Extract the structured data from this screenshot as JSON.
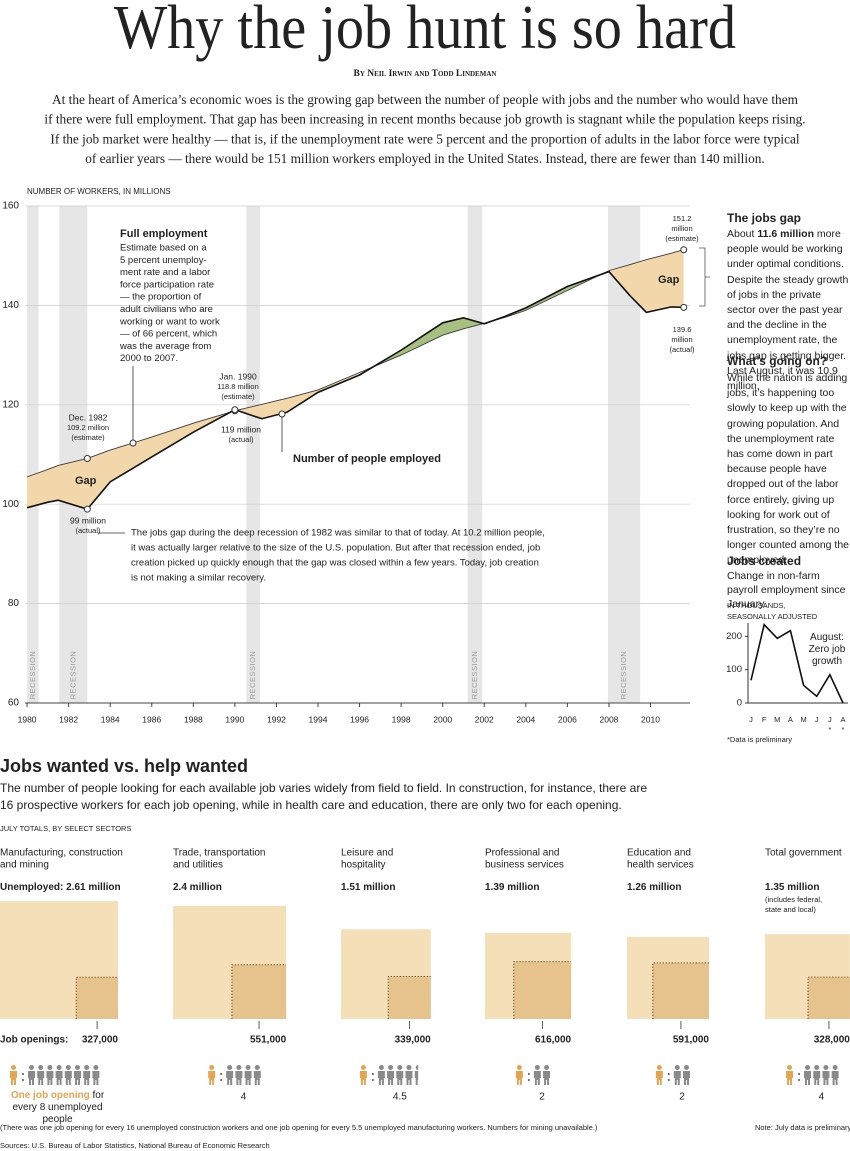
{
  "header": {
    "title": "Why the job hunt is so hard",
    "byline": "By Neil Irwin and Todd Lindeman",
    "intro": [
      "At the heart of America’s economic woes is the growing gap between the number of people with jobs and the number who would have them",
      "if there were full employment. That gap has been increasing in recent months because job growth is stagnant while the population keeps rising.",
      "If the job market were healthy — that is, if the unemployment rate were 5 percent and the proportion of adults in the labor force were typical",
      "of earlier years — there would be 151 million workers employed in the United States. Instead, there are fewer than 140 million."
    ]
  },
  "chart_data": [
    {
      "type": "gap-line",
      "axis_label": "NUMBER OF WORKERS, IN MILLIONS",
      "x": [
        1980,
        1981,
        1981.5,
        1982.9,
        1984,
        1986,
        1988,
        1990,
        1991.3,
        1992.5,
        1994,
        1996,
        1998,
        2000,
        2001,
        2002,
        2003,
        2004,
        2006,
        2008,
        2009,
        2009.8,
        2011,
        2011.6
      ],
      "series": [
        {
          "name": "Full employment",
          "color": "#3a3a3a",
          "values": [
            105.5,
            107,
            107.8,
            109.2,
            110.9,
            113.5,
            116.3,
            118.8,
            120.1,
            121.3,
            123,
            126.5,
            130,
            134,
            135.3,
            136.4,
            137.6,
            139,
            143,
            147,
            148.2,
            149.2,
            150.5,
            151.2
          ]
        },
        {
          "name": "Number of people employed",
          "color": "#111111",
          "values": [
            99.3,
            100.4,
            100.8,
            99,
            104.5,
            109.5,
            114.5,
            119,
            117.2,
            118.5,
            122.5,
            126,
            131,
            136.5,
            137.5,
            136.3,
            137.8,
            139.5,
            143.8,
            146.8,
            142,
            138.6,
            139.7,
            139.6
          ]
        }
      ],
      "gap_color": "#f2d7ab",
      "surplus_color": "#a7bf80",
      "xlim": [
        1979.9,
        2011.9
      ],
      "xticks": [
        1980,
        1982,
        1984,
        1986,
        1988,
        1990,
        1992,
        1994,
        1996,
        1998,
        2000,
        2002,
        2004,
        2006,
        2008,
        2010
      ],
      "ylim": [
        60,
        160
      ],
      "yticks": [
        60,
        80,
        100,
        120,
        140,
        160
      ],
      "grid": true,
      "recessions": [
        [
          1980,
          1980.55
        ],
        [
          1981.55,
          1982.9
        ],
        [
          1990.55,
          1991.2
        ],
        [
          2001.2,
          2001.9
        ],
        [
          2007.95,
          2009.5
        ]
      ],
      "recession_label": "RECESSION",
      "highlights": [
        {
          "x": 1982.9,
          "y": 109.2,
          "lines": [
            "Dec. 1982",
            "109.2 million",
            "(estimate)"
          ]
        },
        {
          "x": 1982.9,
          "y": 99,
          "lines": [
            "99 million",
            "(actual)"
          ]
        },
        {
          "x": 1990,
          "y": 118.8,
          "lines": [
            "Jan. 1990",
            "118.8 million",
            "(estimate)"
          ]
        },
        {
          "x": 1990,
          "y": 119,
          "lines": [
            "119 million",
            "(actual)"
          ]
        },
        {
          "x": 2011.6,
          "y": 151.2,
          "lines": [
            "151.2",
            "million",
            "(estimate)"
          ]
        },
        {
          "x": 2011.6,
          "y": 139.6,
          "lines": [
            "139.6",
            "million",
            "(actual)"
          ]
        }
      ],
      "notes": {
        "full_employment": [
          "Estimate based on a",
          "5 percent unemploy-",
          "ment rate and a labor",
          "force participation rate",
          "— the proportion of",
          "adult civilians who are",
          "working or want to work",
          "— of 66 percent, which",
          "was the average from",
          "2000 to 2007."
        ],
        "gap": "Gap",
        "recession_1982": [
          "The jobs gap during the deep recession of 1982 was similar to that of today. At 10.2 million people,",
          "it was actually larger relative to the size of the U.S. population. But after that recession ended, job",
          "creation picked up quickly enough that the gap was closed within a few years. Today, job creation",
          "is not making a similar recovery."
        ]
      }
    },
    {
      "type": "line",
      "title": "Jobs created",
      "subtitle": "Change in non-farm payroll employment since January.",
      "unit": "IN THOUSANDS, SEASONALLY ADJUSTED",
      "categories": [
        "J",
        "F",
        "M",
        "A",
        "M",
        "J",
        "J",
        "A"
      ],
      "category_notes": [
        null,
        null,
        null,
        null,
        null,
        null,
        "*",
        "*"
      ],
      "values": [
        68,
        235,
        194,
        217,
        53,
        20,
        85,
        0
      ],
      "color": "#111111",
      "ylim": [
        0,
        240
      ],
      "yticks": [
        0,
        100,
        200
      ],
      "annotation": "August: Zero job growth",
      "footnote": "*Data is preliminary"
    },
    {
      "type": "proportional-squares",
      "title": "Jobs wanted vs. help wanted",
      "text": [
        "The number of people looking for each available job varies widely from field to field. In construction, for instance, there are",
        "16 prospective workers for each job opening, while in health care and education, there are only two for each opening."
      ],
      "subtitle": "JULY TOTALS, BY SELECT SECTORS",
      "categories": [
        [
          "Manufacturing, construction",
          "and mining"
        ],
        [
          "Trade, transportation",
          "and utilities"
        ],
        [
          "Leisure and",
          "hospitality"
        ],
        [
          "Professional and",
          "business services"
        ],
        [
          "Education and",
          "health services"
        ],
        [
          "Total government"
        ]
      ],
      "category_notes": [
        null,
        null,
        null,
        null,
        null,
        "(includes federal, state and local)"
      ],
      "series": [
        {
          "name": "Unemployed:",
          "color": "#f4dfb9",
          "values": [
            2610000,
            2400000,
            1510000,
            1390000,
            1260000,
            1350000
          ],
          "value_labels": [
            "2.61 million",
            "2.4 million",
            "1.51 million",
            "1.39 million",
            "1.26 million",
            "1.35 million"
          ]
        },
        {
          "name": "Job openings:",
          "color": "#e6c28c",
          "values": [
            327000,
            551000,
            339000,
            616000,
            591000,
            328000
          ],
          "value_labels": [
            "327,000",
            "551,000",
            "339,000",
            "616,000",
            "591,000",
            "328,000"
          ]
        }
      ],
      "ratios": {
        "values": [
          8,
          4,
          4.5,
          2,
          2,
          4
        ],
        "colors": {
          "opening": "#e3a552",
          "unemployed": "#8a8a8a"
        }
      },
      "ratio_legend": {
        "highlight": "One job opening",
        "text": "for every 8 unemployed people"
      }
    }
  ],
  "sidebar": {
    "gap": {
      "title": "The jobs gap",
      "text": [
        "About",
        "11.6 million",
        "more people would be working under optimal conditions. Despite the steady growth of jobs in the private sector over the past year and the decline in the unemployment rate, the jobs gap is getting bigger. Last August, it was 10.9 million."
      ]
    },
    "going_on": {
      "title": "What’s going on?",
      "text": "While the nation is adding jobs, it’s happening too slowly to keep up with the growing population. And the unemployment rate has come down in part because people have dropped out of the labor force entirely, giving up looking for work out of frustration, so they’re no longer counted among the unemployed."
    }
  },
  "footer": {
    "note": "(There was one job opening for every 16 unemployed construction workers and one job opening for every 5.5 unemployed manufacturing workers. Numbers for mining unavailable.)",
    "preliminary": "Note: July data is preliminary",
    "source": "Sources: U.S. Bureau of Labor Statistics, National Bureau of Economic Research"
  }
}
